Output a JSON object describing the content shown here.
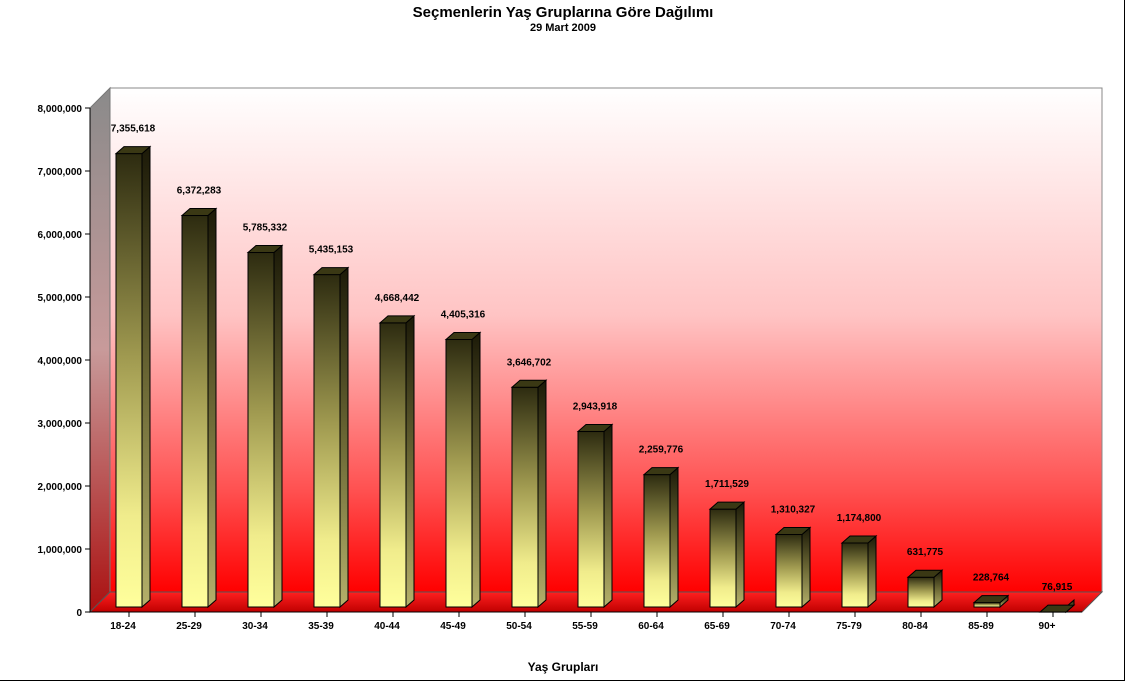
{
  "chart_data": {
    "type": "bar",
    "title": "Seçmenlerin Yaş Gruplarına Göre Dağılımı",
    "subtitle": "29 Mart 2009",
    "xlabel": "Yaş Grupları",
    "ylabel": "",
    "ylim": [
      0,
      8000000
    ],
    "yticks": [
      0,
      1000000,
      2000000,
      3000000,
      4000000,
      5000000,
      6000000,
      7000000,
      8000000
    ],
    "ytick_labels": [
      "0",
      "1,000,000",
      "2,000,000",
      "3,000,000",
      "4,000,000",
      "5,000,000",
      "6,000,000",
      "7,000,000",
      "8,000,000"
    ],
    "categories": [
      "18-24",
      "25-29",
      "30-34",
      "35-39",
      "40-44",
      "45-49",
      "50-54",
      "55-59",
      "60-64",
      "65-69",
      "70-74",
      "75-79",
      "80-84",
      "85-89",
      "90+"
    ],
    "values": [
      7355618,
      6372283,
      5785332,
      5435153,
      4668442,
      4405316,
      3646702,
      2943918,
      2259776,
      1711529,
      1310327,
      1174800,
      631775,
      228764,
      76915
    ],
    "data_labels": [
      "7,355,618",
      "6,372,283",
      "5,785,332",
      "5,435,153",
      "4,668,442",
      "4,405,316",
      "3,646,702",
      "2,943,918",
      "2,259,776",
      "1,711,529",
      "1,310,327",
      "1,174,800",
      "631,775",
      "228,764",
      "76,915"
    ],
    "grid": false,
    "legend": "none",
    "style": "3d",
    "colors": {
      "background_top": "#ffffff",
      "background_bottom": "#ff0000",
      "bar_top": "#2b2a10",
      "bar_bottom": "#ffff99"
    }
  }
}
